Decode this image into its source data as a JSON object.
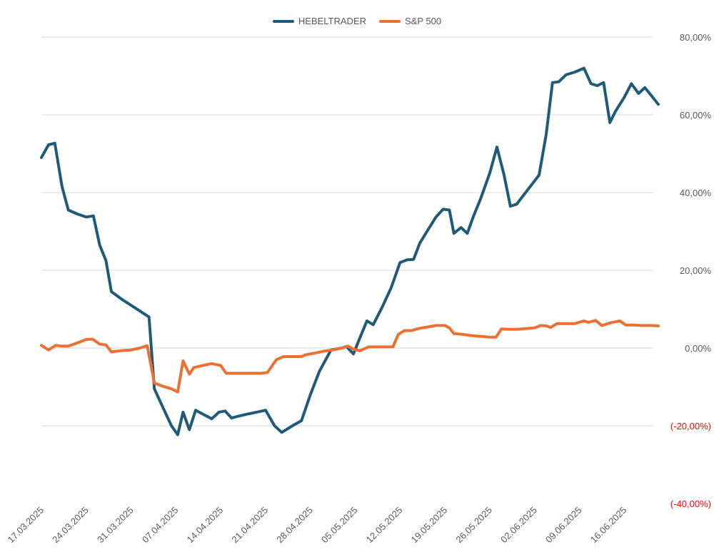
{
  "chart_data": {
    "type": "line",
    "title": "",
    "xlabel": "",
    "ylabel": "",
    "ylim": [
      -40,
      80
    ],
    "y_ticks": [
      {
        "value": 80,
        "label": "80,00%"
      },
      {
        "value": 60,
        "label": "60,00%"
      },
      {
        "value": 40,
        "label": "40,00%"
      },
      {
        "value": 20,
        "label": "20,00%"
      },
      {
        "value": 0,
        "label": "0,00%"
      },
      {
        "value": -20,
        "label": "(-20,00%)"
      },
      {
        "value": -40,
        "label": "(-40,00%)"
      }
    ],
    "x_ticks": [
      {
        "index": 0,
        "label": "17.03.2025"
      },
      {
        "index": 5,
        "label": "24.03.2025"
      },
      {
        "index": 10,
        "label": "31.03.2025"
      },
      {
        "index": 15,
        "label": "07.04.2025"
      },
      {
        "index": 20,
        "label": "14.04.2025"
      },
      {
        "index": 25,
        "label": "21.04.2025"
      },
      {
        "index": 30,
        "label": "28.04.2025"
      },
      {
        "index": 35,
        "label": "05.05.2025"
      },
      {
        "index": 40,
        "label": "12.05.2025"
      },
      {
        "index": 45,
        "label": "19.05.2025"
      },
      {
        "index": 50,
        "label": "26.05.2025"
      },
      {
        "index": 55,
        "label": "02.06.2025"
      },
      {
        "index": 60,
        "label": "09.06.2025"
      },
      {
        "index": 65,
        "label": "16.06.2025"
      }
    ],
    "legend_position": "top-center",
    "grid": true,
    "series": [
      {
        "name": "HEBELTRADER",
        "color": "#1f5b78",
        "points": [
          [
            0,
            49
          ],
          [
            0.8,
            52.3
          ],
          [
            1.5,
            52.7
          ],
          [
            2.3,
            41.5
          ],
          [
            3,
            35.5
          ],
          [
            4,
            34.5
          ],
          [
            5,
            33.7
          ],
          [
            5.8,
            34
          ],
          [
            6.5,
            26.5
          ],
          [
            7.2,
            22.5
          ],
          [
            7.8,
            14.5
          ],
          [
            9,
            12.5
          ],
          [
            10,
            11
          ],
          [
            11,
            9.5
          ],
          [
            12,
            8
          ],
          [
            12.6,
            -10.5
          ],
          [
            13.5,
            -15
          ],
          [
            14.5,
            -20
          ],
          [
            15.2,
            -22.3
          ],
          [
            15.8,
            -16.5
          ],
          [
            16.5,
            -21
          ],
          [
            17.2,
            -16
          ],
          [
            18,
            -17
          ],
          [
            19,
            -18.2
          ],
          [
            19.8,
            -16.5
          ],
          [
            20.5,
            -16.2
          ],
          [
            21.2,
            -18
          ],
          [
            22,
            -17.5
          ],
          [
            23,
            -17
          ],
          [
            24,
            -16.5
          ],
          [
            25,
            -16
          ],
          [
            26,
            -20
          ],
          [
            26.8,
            -21.7
          ],
          [
            28,
            -20
          ],
          [
            29,
            -18.7
          ],
          [
            30,
            -12
          ],
          [
            31,
            -6
          ],
          [
            32.3,
            -0.5
          ],
          [
            33.5,
            0
          ],
          [
            34,
            0.4
          ],
          [
            34.8,
            -1.5
          ],
          [
            35.5,
            2.5
          ],
          [
            36.3,
            7
          ],
          [
            37,
            6
          ],
          [
            38,
            10.5
          ],
          [
            39,
            15.5
          ],
          [
            40,
            22
          ],
          [
            40.8,
            22.7
          ],
          [
            41.5,
            22.8
          ],
          [
            42.2,
            27
          ],
          [
            43,
            30
          ],
          [
            44,
            33.7
          ],
          [
            44.8,
            35.7
          ],
          [
            45.5,
            35.5
          ],
          [
            46,
            29.5
          ],
          [
            46.8,
            31
          ],
          [
            47.5,
            29.5
          ],
          [
            48.2,
            34
          ],
          [
            49,
            38.5
          ],
          [
            50,
            45
          ],
          [
            50.8,
            51.7
          ],
          [
            51.6,
            44.5
          ],
          [
            52.3,
            36.5
          ],
          [
            53,
            37
          ],
          [
            54,
            40
          ],
          [
            55,
            43
          ],
          [
            55.5,
            44.5
          ],
          [
            56.3,
            55
          ],
          [
            57,
            68.3
          ],
          [
            57.7,
            68.5
          ],
          [
            58.5,
            70.3
          ],
          [
            59.5,
            71
          ],
          [
            60.5,
            72
          ],
          [
            61.3,
            68
          ],
          [
            62,
            67.5
          ],
          [
            62.7,
            68.3
          ],
          [
            63.4,
            58
          ],
          [
            64,
            60.8
          ],
          [
            65,
            64.5
          ],
          [
            65.8,
            68
          ],
          [
            66.6,
            65.5
          ],
          [
            67.3,
            67
          ],
          [
            68,
            65
          ],
          [
            68.8,
            62.7
          ]
        ]
      },
      {
        "name": "S&P 500",
        "color": "#ec7034",
        "points": [
          [
            0,
            0.7
          ],
          [
            0.8,
            -0.5
          ],
          [
            1.6,
            0.7
          ],
          [
            2.3,
            0.5
          ],
          [
            3,
            0.5
          ],
          [
            4,
            1.3
          ],
          [
            5,
            2.2
          ],
          [
            5.7,
            2.3
          ],
          [
            6.5,
            1
          ],
          [
            7.2,
            0.8
          ],
          [
            7.8,
            -1
          ],
          [
            8.8,
            -0.7
          ],
          [
            10,
            -0.5
          ],
          [
            11,
            0
          ],
          [
            11.8,
            0.6
          ],
          [
            12.6,
            -9
          ],
          [
            13.5,
            -9.8
          ],
          [
            14.5,
            -10.5
          ],
          [
            15.2,
            -11.3
          ],
          [
            15.8,
            -3.3
          ],
          [
            16.5,
            -6.7
          ],
          [
            17,
            -5
          ],
          [
            18,
            -4.5
          ],
          [
            19,
            -4
          ],
          [
            20,
            -4.5
          ],
          [
            20.6,
            -6.5
          ],
          [
            21.5,
            -6.5
          ],
          [
            22.5,
            -6.5
          ],
          [
            23.5,
            -6.5
          ],
          [
            24.5,
            -6.5
          ],
          [
            25.2,
            -6.3
          ],
          [
            26.2,
            -3
          ],
          [
            27,
            -2.2
          ],
          [
            28,
            -2.2
          ],
          [
            29,
            -2.2
          ],
          [
            29.5,
            -1.7
          ],
          [
            30.5,
            -1.3
          ],
          [
            31.5,
            -0.8
          ],
          [
            32.5,
            -0.5
          ],
          [
            33.5,
            0
          ],
          [
            34.2,
            0.5
          ],
          [
            34.8,
            -0.3
          ],
          [
            35.5,
            -0.7
          ],
          [
            36.5,
            0.3
          ],
          [
            37.5,
            0.3
          ],
          [
            38.5,
            0.3
          ],
          [
            39.2,
            0.3
          ],
          [
            39.8,
            3.5
          ],
          [
            40.5,
            4.5
          ],
          [
            41.3,
            4.5
          ],
          [
            42,
            5
          ],
          [
            43,
            5.4
          ],
          [
            44,
            5.8
          ],
          [
            45,
            5.8
          ],
          [
            45.5,
            5.2
          ],
          [
            46,
            3.7
          ],
          [
            47,
            3.5
          ],
          [
            48,
            3.2
          ],
          [
            49,
            3
          ],
          [
            50,
            2.8
          ],
          [
            50.7,
            2.8
          ],
          [
            51.3,
            4.9
          ],
          [
            52.2,
            4.8
          ],
          [
            53,
            4.8
          ],
          [
            54,
            5
          ],
          [
            55,
            5.2
          ],
          [
            55.7,
            5.8
          ],
          [
            56.3,
            5.7
          ],
          [
            56.8,
            5.3
          ],
          [
            57.5,
            6.3
          ],
          [
            58.5,
            6.3
          ],
          [
            59.5,
            6.3
          ],
          [
            60.5,
            7
          ],
          [
            61,
            6.6
          ],
          [
            61.8,
            7.1
          ],
          [
            62.5,
            5.8
          ],
          [
            63.5,
            6.5
          ],
          [
            64.5,
            7
          ],
          [
            65.2,
            5.9
          ],
          [
            66,
            5.9
          ],
          [
            67,
            5.8
          ],
          [
            68,
            5.8
          ],
          [
            68.8,
            5.7
          ]
        ]
      }
    ]
  }
}
